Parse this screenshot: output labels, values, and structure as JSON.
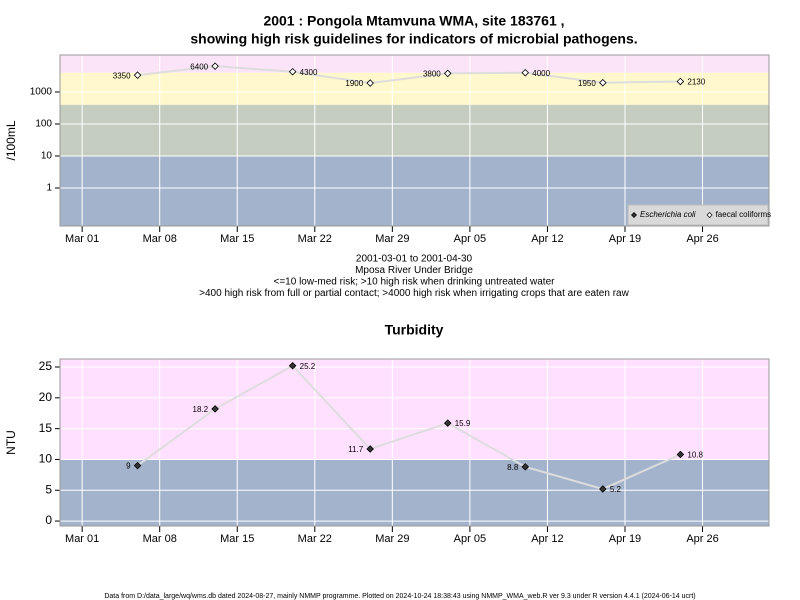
{
  "chart_data": [
    {
      "type": "line",
      "title": [
        "2001 : Pongola Mtamvuna WMA, site 183761 ,",
        "showing high risk guidelines for indicators of microbial pathogens."
      ],
      "notes": [
        "2001-03-01 to 2001-04-30",
        "Mposa River Under Bridge",
        "<=10 low-med risk; >10 high risk when drinking untreated water",
        ">400 high risk from full or partial contact; >4000 high risk when irrigating crops that are eaten raw"
      ],
      "ylabel": "/100mL",
      "log_scale": true,
      "grid": true,
      "legend": "bottom right",
      "x": [
        "2001-03-06",
        "2001-03-13",
        "2001-03-20",
        "2001-03-27",
        "2001-04-03",
        "2001-04-10",
        "2001-04-17",
        "2001-04-24"
      ],
      "series": [
        {
          "name": "Escherichia coli",
          "marker": "filled",
          "color": "#222222",
          "values": [
            null,
            null,
            null,
            null,
            null,
            null,
            null,
            null
          ]
        },
        {
          "name": "faecal coliforms",
          "marker": "open",
          "color": "#dddddd",
          "values": [
            3350,
            6400,
            4300,
            1900,
            3800,
            4000,
            1950,
            2130
          ]
        }
      ],
      "thresholds": [
        10,
        400,
        4000
      ],
      "band_colors": [
        "#a3b3cc",
        "#c5cdc0",
        "#fff8cc",
        "#fce4f8"
      ],
      "xlim": [
        "2001-02-27",
        "2001-05-02"
      ],
      "xticks": [
        {
          "value": "2001-03-01",
          "label": "Mar 01"
        },
        {
          "value": "2001-03-08",
          "label": "Mar 08"
        },
        {
          "value": "2001-03-15",
          "label": "Mar 15"
        },
        {
          "value": "2001-03-22",
          "label": "Mar 22"
        },
        {
          "value": "2001-03-29",
          "label": "Mar 29"
        },
        {
          "value": "2001-04-05",
          "label": "Apr 05"
        },
        {
          "value": "2001-04-12",
          "label": "Apr 12"
        },
        {
          "value": "2001-04-19",
          "label": "Apr 19"
        },
        {
          "value": "2001-04-26",
          "label": "Apr 26"
        }
      ],
      "ylim": [
        0.065,
        14300
      ],
      "yticks": [
        1,
        10,
        100,
        1000
      ]
    },
    {
      "type": "line",
      "title": [
        "Turbidity"
      ],
      "ylabel": "NTU",
      "log_scale": false,
      "grid": true,
      "x": [
        "2001-03-06",
        "2001-03-13",
        "2001-03-20",
        "2001-03-27",
        "2001-04-03",
        "2001-04-10",
        "2001-04-17",
        "2001-04-24"
      ],
      "series": [
        {
          "marker": "filled",
          "color": "#dddddd",
          "values": [
            9,
            18.2,
            25.2,
            11.7,
            15.9,
            8.8,
            5.2,
            10.8
          ]
        }
      ],
      "thresholds": [
        10
      ],
      "band_colors": [
        "#a3b3cc",
        "#ffe0ff"
      ],
      "xlim": [
        "2001-02-27",
        "2001-05-02"
      ],
      "xticks": [
        {
          "value": "2001-03-01",
          "label": "Mar 01"
        },
        {
          "value": "2001-03-08",
          "label": "Mar 08"
        },
        {
          "value": "2001-03-15",
          "label": "Mar 15"
        },
        {
          "value": "2001-03-22",
          "label": "Mar 22"
        },
        {
          "value": "2001-03-29",
          "label": "Mar 29"
        },
        {
          "value": "2001-04-05",
          "label": "Apr 05"
        },
        {
          "value": "2001-04-12",
          "label": "Apr 12"
        },
        {
          "value": "2001-04-19",
          "label": "Apr 19"
        },
        {
          "value": "2001-04-26",
          "label": "Apr 26"
        }
      ],
      "ylim": [
        -0.8,
        26.3
      ],
      "yticks": [
        0,
        5,
        10,
        15,
        20,
        25
      ]
    }
  ],
  "footer": "Data from D:/data_large/wq/wms.db dated 2024-08-27, mainly NMMP programme. Plotted on 2024-10-24 18:38:43 using NMMP_WMA_web.R ver 9.3 under R version 4.4.1 (2024-06-14 ucrt)"
}
